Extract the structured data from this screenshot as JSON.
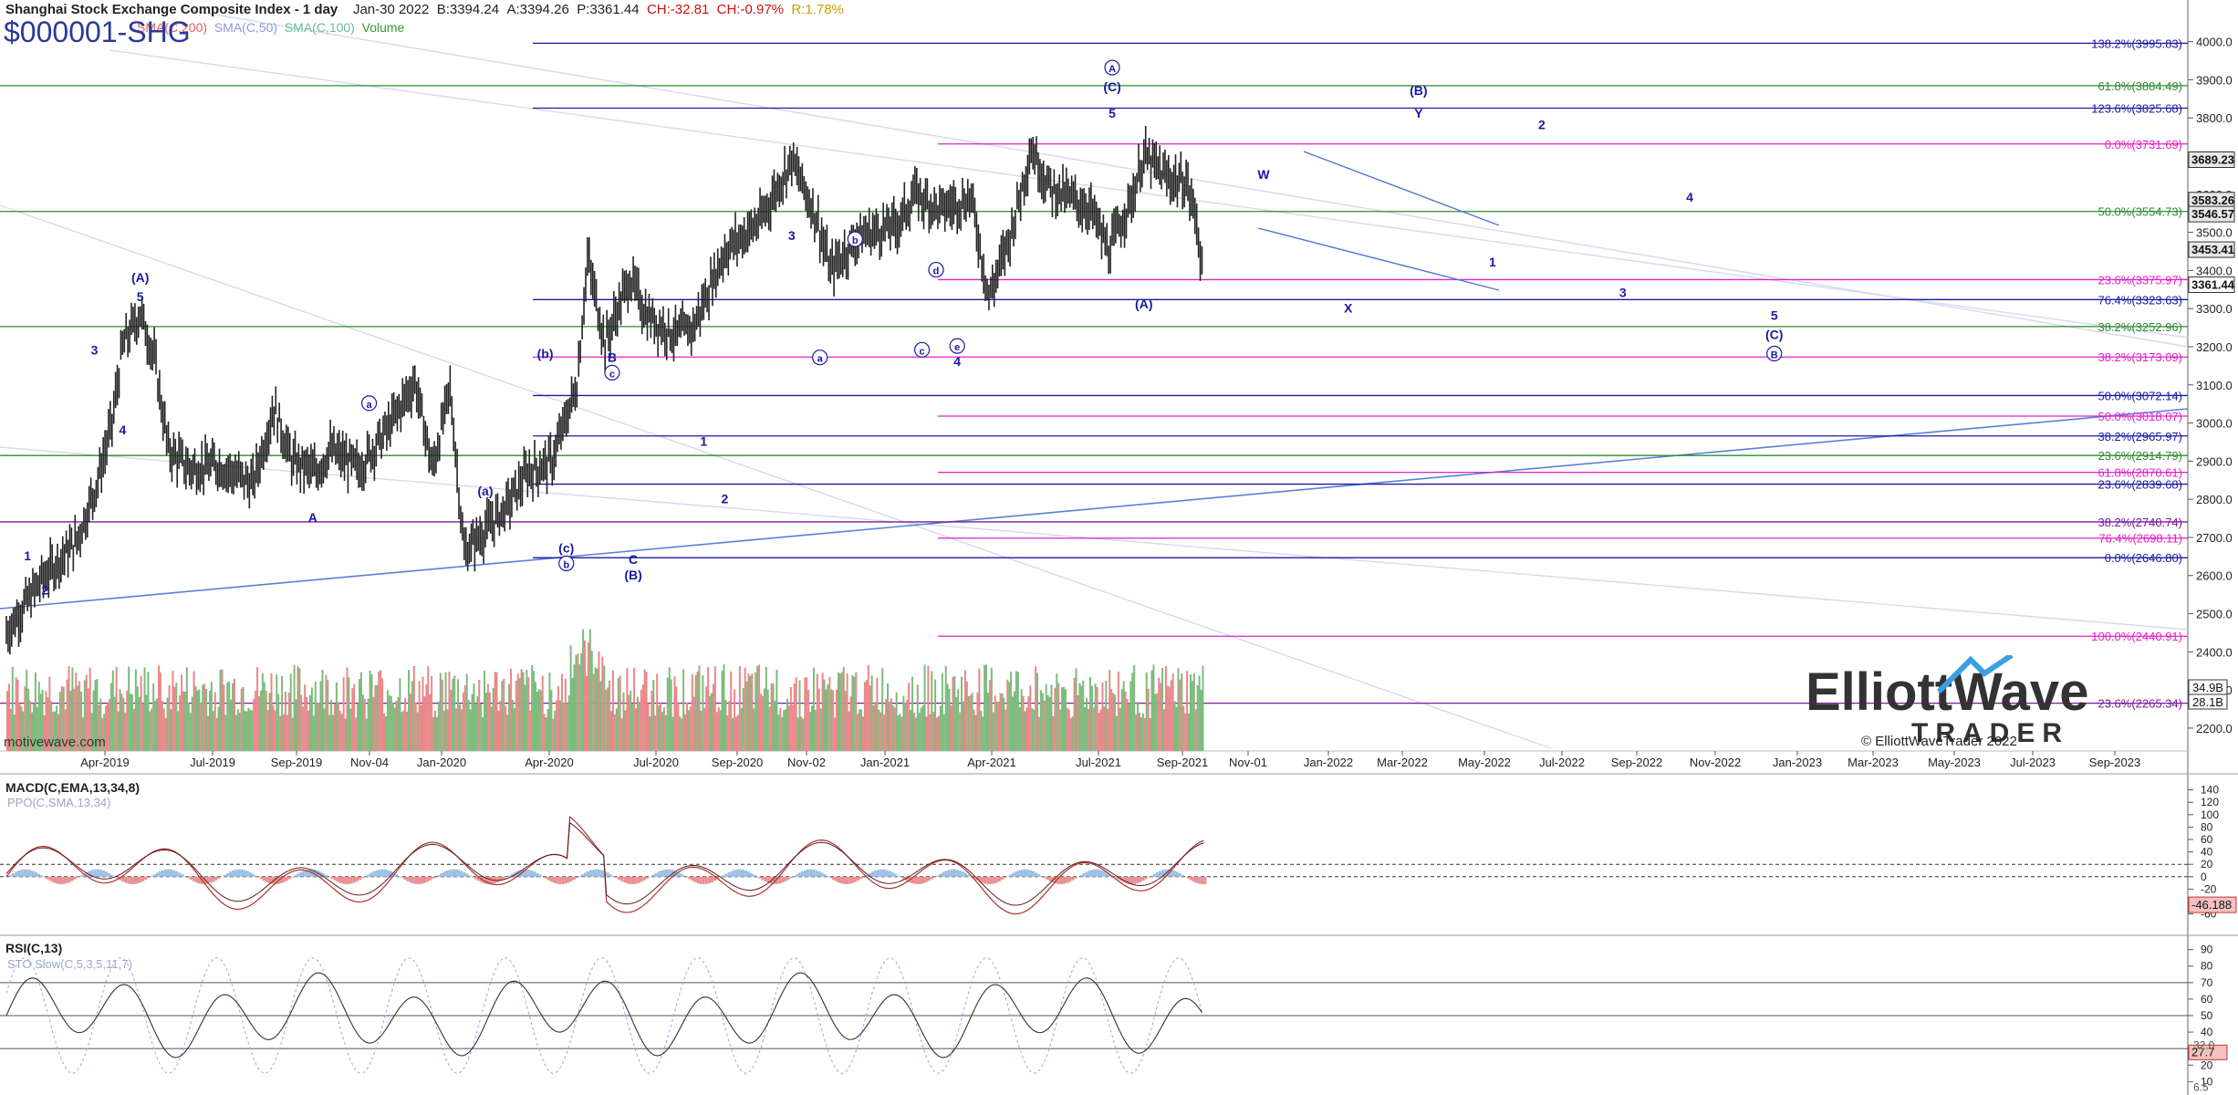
{
  "header": {
    "title": "Shanghai Stock Exchange Composite Index - 1 day",
    "date": "Jan-30 2022",
    "bid": "B:3394.24",
    "ask": "A:3394.26",
    "price": "P:3361.44",
    "change": "CH:-32.81",
    "change_pct": "CH:-0.97%",
    "range": "R:1.78%",
    "symbol": "$000001-SHG",
    "indicators": [
      "SMA(C,200)",
      "SMA(C,50)",
      "SMA(C,100)",
      "Volume"
    ]
  },
  "watermark": "motivewave.com",
  "logo": {
    "line1": "ElliottWave",
    "line2": "TRADER",
    "copyright": "© ElliottWaveTrader 2022"
  },
  "colors": {
    "fib_blue": "#1a1aa0",
    "fib_green": "#2e8b2e",
    "fib_magenta": "#e020c8",
    "fib_purple": "#7a1a9a",
    "wave_label": "#1a1aa0",
    "candle": "#222222",
    "vol_up": "#7dbb7d",
    "vol_down": "#e8888a"
  },
  "chart_data": [
    {
      "type": "candlestick",
      "title": "Shanghai Stock Exchange Composite Index - 1 day",
      "y_axis_ticks": [
        2200,
        2300,
        2400,
        2500,
        2600,
        2700,
        2800,
        2900,
        3000,
        3100,
        3200,
        3300,
        3400,
        3500,
        3600,
        3700,
        3800,
        3900,
        4000
      ],
      "ylim": [
        2140,
        4090
      ],
      "x_axis_labels": [
        "Apr-2019",
        "Jul-2019",
        "Sep-2019",
        "Nov-04",
        "Jan-2020",
        "Apr-2020",
        "Jul-2020",
        "Sep-2020",
        "Nov-02",
        "Jan-2021",
        "Apr-2021",
        "Jul-2021",
        "Sep-2021",
        "Nov-01",
        "Jan-2022",
        "Mar-2022",
        "May-2022",
        "Jul-2022",
        "Sep-2022",
        "Nov-2022",
        "Jan-2023",
        "Mar-2023",
        "May-2023",
        "Jul-2023",
        "Sep-2023"
      ],
      "price_path": [
        [
          0,
          2450
        ],
        [
          1,
          2590
        ],
        [
          2,
          2690
        ],
        [
          2.6,
          2850
        ],
        [
          3,
          3000
        ],
        [
          3.3,
          3200
        ],
        [
          3.8,
          3290
        ],
        [
          4.2,
          3170
        ],
        [
          4.6,
          2930
        ],
        [
          5.2,
          2880
        ],
        [
          6,
          2890
        ],
        [
          7,
          2840
        ],
        [
          7.6,
          3040
        ],
        [
          8.1,
          2900
        ],
        [
          8.8,
          2870
        ],
        [
          9.2,
          2930
        ],
        [
          10,
          2880
        ],
        [
          10.8,
          2980
        ],
        [
          11.6,
          3110
        ],
        [
          12.1,
          2880
        ],
        [
          12.6,
          3090
        ],
        [
          13,
          2660
        ],
        [
          13.4,
          2700
        ],
        [
          14.2,
          2780
        ],
        [
          14.8,
          2870
        ],
        [
          15.5,
          2900
        ],
        [
          16.2,
          3100
        ],
        [
          16.5,
          3430
        ],
        [
          17,
          3210
        ],
        [
          17.7,
          3380
        ],
        [
          18.2,
          3280
        ],
        [
          19,
          3230
        ],
        [
          19.5,
          3250
        ],
        [
          20.4,
          3450
        ],
        [
          21.4,
          3530
        ],
        [
          22.3,
          3690
        ],
        [
          23,
          3540
        ],
        [
          23.4,
          3400
        ],
        [
          24.2,
          3490
        ],
        [
          25.3,
          3520
        ],
        [
          25.8,
          3600
        ],
        [
          26.5,
          3560
        ],
        [
          27.4,
          3590
        ],
        [
          27.9,
          3330
        ],
        [
          28.5,
          3490
        ],
        [
          29.1,
          3720
        ],
        [
          29.6,
          3620
        ],
        [
          30.8,
          3560
        ],
        [
          31.3,
          3450
        ],
        [
          32,
          3600
        ],
        [
          32.3,
          3700
        ],
        [
          33,
          3640
        ],
        [
          33.5,
          3630
        ],
        [
          33.8,
          3531
        ],
        [
          34,
          3361
        ]
      ],
      "current_price": 3361.44,
      "price_tags": [
        3689.23,
        3583.26,
        3546.57,
        3453.41,
        3361.44
      ],
      "fib_levels": [
        {
          "label": "138.2%(3995.83)",
          "value": 3995.83,
          "color": "#1a1aa0"
        },
        {
          "label": "61.8%(3884.49)",
          "value": 3884.49,
          "color": "#2e8b2e"
        },
        {
          "label": "123.6%(3825.68)",
          "value": 3825.68,
          "color": "#1a1aa0"
        },
        {
          "label": "0.0%(3731.69)",
          "value": 3731.69,
          "color": "#e020c8"
        },
        {
          "label": "50.0%(3554.73)",
          "value": 3554.73,
          "color": "#2e8b2e"
        },
        {
          "label": "23.6%(3375.97)",
          "value": 3375.97,
          "color": "#e020c8"
        },
        {
          "label": "76.4%(3323.63)",
          "value": 3323.63,
          "color": "#1a1aa0"
        },
        {
          "label": "38.2%(3252.96)",
          "value": 3252.96,
          "color": "#2e8b2e"
        },
        {
          "label": "38.2%(3173.09)",
          "value": 3173.09,
          "color": "#e020c8"
        },
        {
          "label": "50.0%(3072.14)",
          "value": 3072.14,
          "color": "#1a1aa0"
        },
        {
          "label": "50.0%(3018.07)",
          "value": 3018.07,
          "color": "#e020c8"
        },
        {
          "label": "38.2%(2965.97)",
          "value": 2965.97,
          "color": "#1a1aa0"
        },
        {
          "label": "23.6%(2914.79)",
          "value": 2914.79,
          "color": "#2e8b2e"
        },
        {
          "label": "61.8%(2870.61)",
          "value": 2870.61,
          "color": "#e020c8"
        },
        {
          "label": "23.6%(2839.68)",
          "value": 2839.68,
          "color": "#1a1aa0"
        },
        {
          "label": "38.2%(2740.74)",
          "value": 2740.74,
          "color": "#7a1a9a"
        },
        {
          "label": "76.4%(2698.11)",
          "value": 2698.11,
          "color": "#e020c8"
        },
        {
          "label": "0.0%(2646.80)",
          "value": 2646.8,
          "color": "#1a1aa0"
        },
        {
          "label": "100.0%(2440.91)",
          "value": 2440.91,
          "color": "#e020c8"
        },
        {
          "label": "23.6%(2265.34)",
          "value": 2265.34,
          "color": "#7a1a9a"
        }
      ],
      "volume_tags": [
        "34.9B",
        "28.1B"
      ],
      "wave_labels": [
        {
          "text": "1",
          "x": 0.6,
          "y": 2640
        },
        {
          "text": "2",
          "x": 1.1,
          "y": 2550
        },
        {
          "text": "3",
          "x": 2.5,
          "y": 3180
        },
        {
          "text": "4",
          "x": 3.3,
          "y": 2970
        },
        {
          "text": "(A)",
          "x": 3.8,
          "y": 3370
        },
        {
          "text": "5",
          "x": 3.8,
          "y": 3320
        },
        {
          "text": "a",
          "x": 10.3,
          "y": 3040,
          "circle": true
        },
        {
          "text": "A",
          "x": 8.7,
          "y": 2740
        },
        {
          "text": "(a)",
          "x": 13.6,
          "y": 2810
        },
        {
          "text": "(b)",
          "x": 15.3,
          "y": 3170
        },
        {
          "text": "B",
          "x": 17.2,
          "y": 3160
        },
        {
          "text": "c",
          "x": 17.2,
          "y": 3120,
          "circle": true
        },
        {
          "text": "(c)",
          "x": 15.9,
          "y": 2660
        },
        {
          "text": "b",
          "x": 15.9,
          "y": 2620,
          "circle": true
        },
        {
          "text": "C",
          "x": 17.8,
          "y": 2630
        },
        {
          "text": "(B)",
          "x": 17.8,
          "y": 2590
        },
        {
          "text": "1",
          "x": 19.8,
          "y": 2940
        },
        {
          "text": "2",
          "x": 20.4,
          "y": 2790
        },
        {
          "text": "3",
          "x": 22.3,
          "y": 3480
        },
        {
          "text": "a",
          "x": 23.1,
          "y": 3160,
          "circle": true
        },
        {
          "text": "b",
          "x": 24.1,
          "y": 3470,
          "circle": true
        },
        {
          "text": "c",
          "x": 26,
          "y": 3180,
          "circle": true
        },
        {
          "text": "d",
          "x": 26.4,
          "y": 3390,
          "circle": true
        },
        {
          "text": "e",
          "x": 27,
          "y": 3190,
          "circle": true
        },
        {
          "text": "4",
          "x": 27,
          "y": 3150
        },
        {
          "text": "A",
          "x": 31.4,
          "y": 3920,
          "circle": true
        },
        {
          "text": "(C)",
          "x": 31.4,
          "y": 3870
        },
        {
          "text": "5",
          "x": 31.4,
          "y": 3800
        },
        {
          "text": "(A)",
          "x": 32.3,
          "y": 3300
        },
        {
          "text": "W",
          "x": 35.7,
          "y": 3640
        },
        {
          "text": "X",
          "x": 38.1,
          "y": 3290
        },
        {
          "text": "(B)",
          "x": 40.1,
          "y": 3860
        },
        {
          "text": "Y",
          "x": 40.1,
          "y": 3800
        },
        {
          "text": "1",
          "x": 42.2,
          "y": 3410
        },
        {
          "text": "2",
          "x": 43.6,
          "y": 3770
        },
        {
          "text": "3",
          "x": 45.9,
          "y": 3330
        },
        {
          "text": "4",
          "x": 47.8,
          "y": 3580
        },
        {
          "text": "5",
          "x": 50.2,
          "y": 3270
        },
        {
          "text": "(C)",
          "x": 50.2,
          "y": 3220
        },
        {
          "text": "B",
          "x": 50.2,
          "y": 3170,
          "circle": true
        }
      ]
    },
    {
      "type": "line",
      "title": "MACD(C,EMA,13,34,8)",
      "subtitle": "PPO(C,SMA,13,34)",
      "y_axis_ticks": [
        -60,
        -40,
        -20,
        0,
        20,
        40,
        60,
        80,
        100,
        120,
        140
      ],
      "ylim": [
        -90,
        160
      ],
      "last_value": "-46.188"
    },
    {
      "type": "line",
      "title": "RSI(C,13)",
      "subtitle": "STO Slow(C,5,3,5,11,7)",
      "y_axis_ticks": [
        10,
        20,
        30,
        40,
        50,
        60,
        70,
        80,
        90
      ],
      "ylim": [
        3,
        97
      ],
      "last_value": "27.7",
      "extra_tags": [
        "32.0",
        "6.5"
      ]
    }
  ]
}
